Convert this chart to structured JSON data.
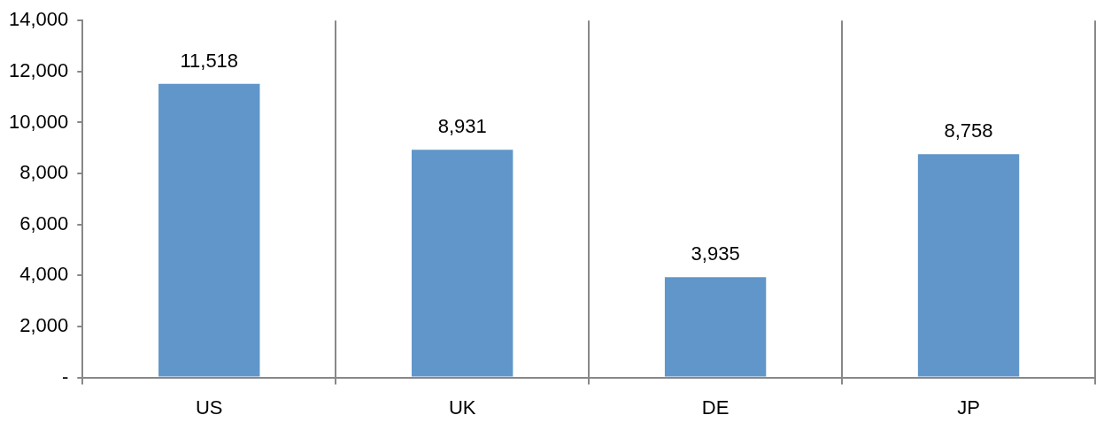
{
  "chart_data": {
    "type": "bar",
    "categories": [
      "US",
      "UK",
      "DE",
      "JP"
    ],
    "values": [
      11518,
      8931,
      3935,
      8758
    ],
    "color": "#6096c9",
    "ylim": [
      0,
      14000
    ],
    "yticks": [
      {
        "value": 0,
        "label": "-"
      },
      {
        "value": 2000,
        "label": "2,000"
      },
      {
        "value": 4000,
        "label": "4,000"
      },
      {
        "value": 6000,
        "label": "6,000"
      },
      {
        "value": 8000,
        "label": "8,000"
      },
      {
        "value": 10000,
        "label": "10,000"
      },
      {
        "value": 12000,
        "label": "12,000"
      },
      {
        "value": 14000,
        "label": "14,000"
      }
    ],
    "grid": "x",
    "legend": false,
    "value_labels": [
      "11,518",
      "8,931",
      "3,935",
      "8,758"
    ]
  }
}
